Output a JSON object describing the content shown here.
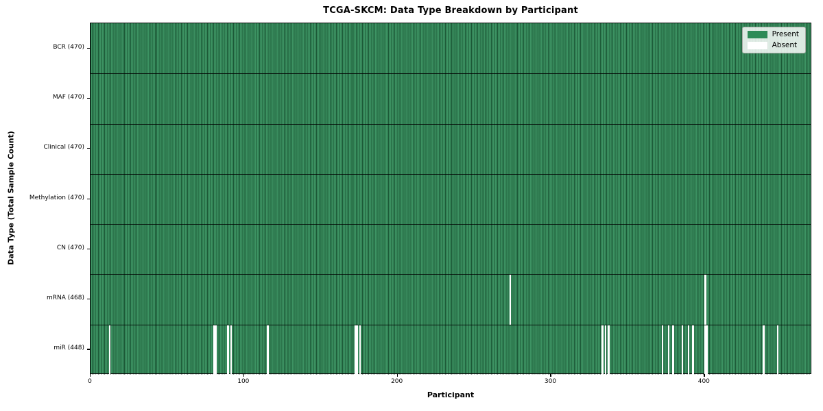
{
  "chart_data": {
    "type": "heatmap",
    "title": "TCGA-SKCM: Data Type Breakdown by Participant",
    "xlabel": "Participant",
    "ylabel": "Data Type (Total Sample Count)",
    "x_range": [
      0,
      470
    ],
    "n_participants": 470,
    "x_ticks": [
      0,
      100,
      200,
      300,
      400
    ],
    "grid": "row-separators-only",
    "legend_position": "upper-right",
    "legend": [
      {
        "label": "Present",
        "color": "#2e8b57"
      },
      {
        "label": "Absent",
        "color": "#ffffff"
      }
    ],
    "rows": [
      {
        "data_type": "BCR",
        "label": "BCR (470)",
        "present_count": 470,
        "absent_participants": []
      },
      {
        "data_type": "MAF",
        "label": "MAF (470)",
        "present_count": 470,
        "absent_participants": []
      },
      {
        "data_type": "Clinical",
        "label": "Clinical (470)",
        "present_count": 470,
        "absent_participants": []
      },
      {
        "data_type": "Methylation",
        "label": "Methylation (470)",
        "present_count": 470,
        "absent_participants": []
      },
      {
        "data_type": "CN",
        "label": "CN (470)",
        "present_count": 470,
        "absent_participants": []
      },
      {
        "data_type": "mRNA",
        "label": "mRNA (468)",
        "present_count": 468,
        "absent_participants": [
          273,
          400
        ]
      },
      {
        "data_type": "miR",
        "label": "miR (448)",
        "present_count": 448,
        "absent_participants": [
          12,
          80,
          81,
          89,
          91,
          115,
          172,
          173,
          175,
          333,
          335,
          337,
          372,
          376,
          379,
          385,
          389,
          392,
          400,
          401,
          438,
          447
        ]
      }
    ],
    "colors": {
      "present_fill": "#2e8b57",
      "absent_fill": "#ffffff",
      "cell_edge": "rgba(8,38,22,0.5)",
      "row_separator": "#000000",
      "plot_border": "#000000",
      "background": "#ffffff"
    }
  }
}
